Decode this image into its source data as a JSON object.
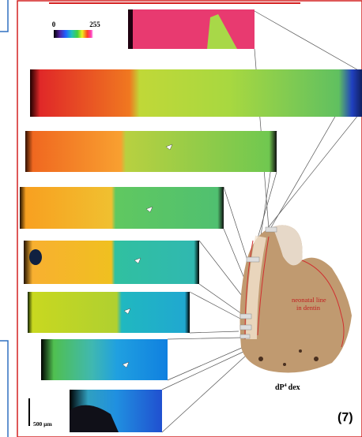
{
  "colorbar": {
    "min_label": "0",
    "max_label": "255"
  },
  "scale_bar": "500 µm",
  "annotation": {
    "line1": "neonatal line",
    "line2": "in dentin"
  },
  "specimen": {
    "label": "dP",
    "superscript": "4",
    "side": "dex"
  },
  "panel_label": "(7)"
}
